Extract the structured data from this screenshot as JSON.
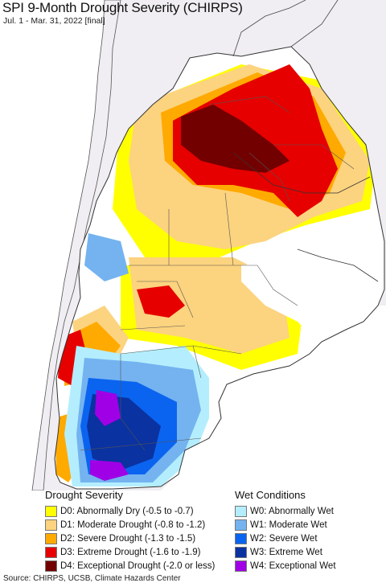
{
  "header": {
    "title": "SPI 9-Month Drought Severity (CHIRPS)",
    "subtitle": "Jul. 1 - Mar. 31, 2022 [final]"
  },
  "legend": {
    "drought_heading": "Drought Severity",
    "drought_items": [
      {
        "label": "D0: Abnormally Dry (-0.5 to -0.7)",
        "color": "#ffff00"
      },
      {
        "label": "D1: Moderate Drought (-0.8 to -1.2)",
        "color": "#fcd37f"
      },
      {
        "label": "D2: Severe Drought (-1.3 to -1.5)",
        "color": "#ffaa00"
      },
      {
        "label": "D3: Extreme Drought (-1.6 to -1.9)",
        "color": "#e60000"
      },
      {
        "label": "D4: Exceptional Drought (-2.0 or less)",
        "color": "#730000"
      }
    ],
    "wet_heading": "Wet Conditions",
    "wet_items": [
      {
        "label": "W0: Abnormally Wet",
        "color": "#b4eefe"
      },
      {
        "label": "W1: Moderate Wet",
        "color": "#74b3f0"
      },
      {
        "label": "W2: Severe Wet",
        "color": "#0a64f0"
      },
      {
        "label": "W3: Extreme Wet",
        "color": "#0a32a0"
      },
      {
        "label": "W4: Exceptional Wet",
        "color": "#a000e6"
      }
    ]
  },
  "footer": {
    "source": "Source: CHIRPS, UCSB, Climate Hazards Center"
  },
  "map": {
    "ocean_color": "#ffffff",
    "outside_land_color": "#f0eef2",
    "border_color": "#555555"
  }
}
